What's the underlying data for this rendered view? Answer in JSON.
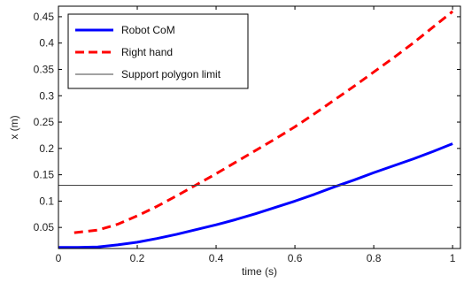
{
  "chart_data": {
    "type": "line",
    "xlabel": "time (s)",
    "ylabel": "x (m)",
    "xlim": [
      0,
      1.02
    ],
    "ylim": [
      0.01,
      0.47
    ],
    "xticks": [
      0,
      0.2,
      0.4,
      0.6,
      0.8,
      1
    ],
    "xtick_labels": [
      "0",
      "0.2",
      "0.4",
      "0.6",
      "0.8",
      "1"
    ],
    "yticks": [
      0.05,
      0.1,
      0.15,
      0.2,
      0.25,
      0.3,
      0.35,
      0.4,
      0.45
    ],
    "ytick_labels": [
      "0.05",
      "0.1",
      "0.15",
      "0.2",
      "0.25",
      "0.3",
      "0.35",
      "0.4",
      "0.45"
    ],
    "grid": false,
    "legend_position": "top-left",
    "series": [
      {
        "name": "Robot CoM",
        "color": "#0000ff",
        "style": "solid",
        "x": [
          0,
          0.05,
          0.1,
          0.15,
          0.2,
          0.25,
          0.3,
          0.35,
          0.4,
          0.45,
          0.5,
          0.55,
          0.6,
          0.65,
          0.7,
          0.75,
          0.8,
          0.85,
          0.9,
          0.95,
          1.0
        ],
        "y": [
          0.012,
          0.012,
          0.013,
          0.017,
          0.022,
          0.029,
          0.037,
          0.046,
          0.055,
          0.065,
          0.076,
          0.088,
          0.1,
          0.113,
          0.127,
          0.14,
          0.154,
          0.167,
          0.18,
          0.194,
          0.209
        ]
      },
      {
        "name": "Right hand",
        "color": "#ff0000",
        "style": "dashed",
        "x": [
          0.04,
          0.1,
          0.15,
          0.2,
          0.25,
          0.3,
          0.35,
          0.4,
          0.45,
          0.5,
          0.55,
          0.6,
          0.65,
          0.7,
          0.75,
          0.8,
          0.85,
          0.9,
          0.95,
          1.0
        ],
        "y": [
          0.04,
          0.045,
          0.056,
          0.072,
          0.09,
          0.11,
          0.131,
          0.152,
          0.174,
          0.196,
          0.218,
          0.241,
          0.266,
          0.292,
          0.318,
          0.345,
          0.372,
          0.4,
          0.43,
          0.46
        ]
      },
      {
        "name": "Support polygon limit",
        "color": "#444444",
        "style": "solid-thin",
        "x": [
          0,
          1.0
        ],
        "y": [
          0.13,
          0.13
        ]
      }
    ]
  }
}
